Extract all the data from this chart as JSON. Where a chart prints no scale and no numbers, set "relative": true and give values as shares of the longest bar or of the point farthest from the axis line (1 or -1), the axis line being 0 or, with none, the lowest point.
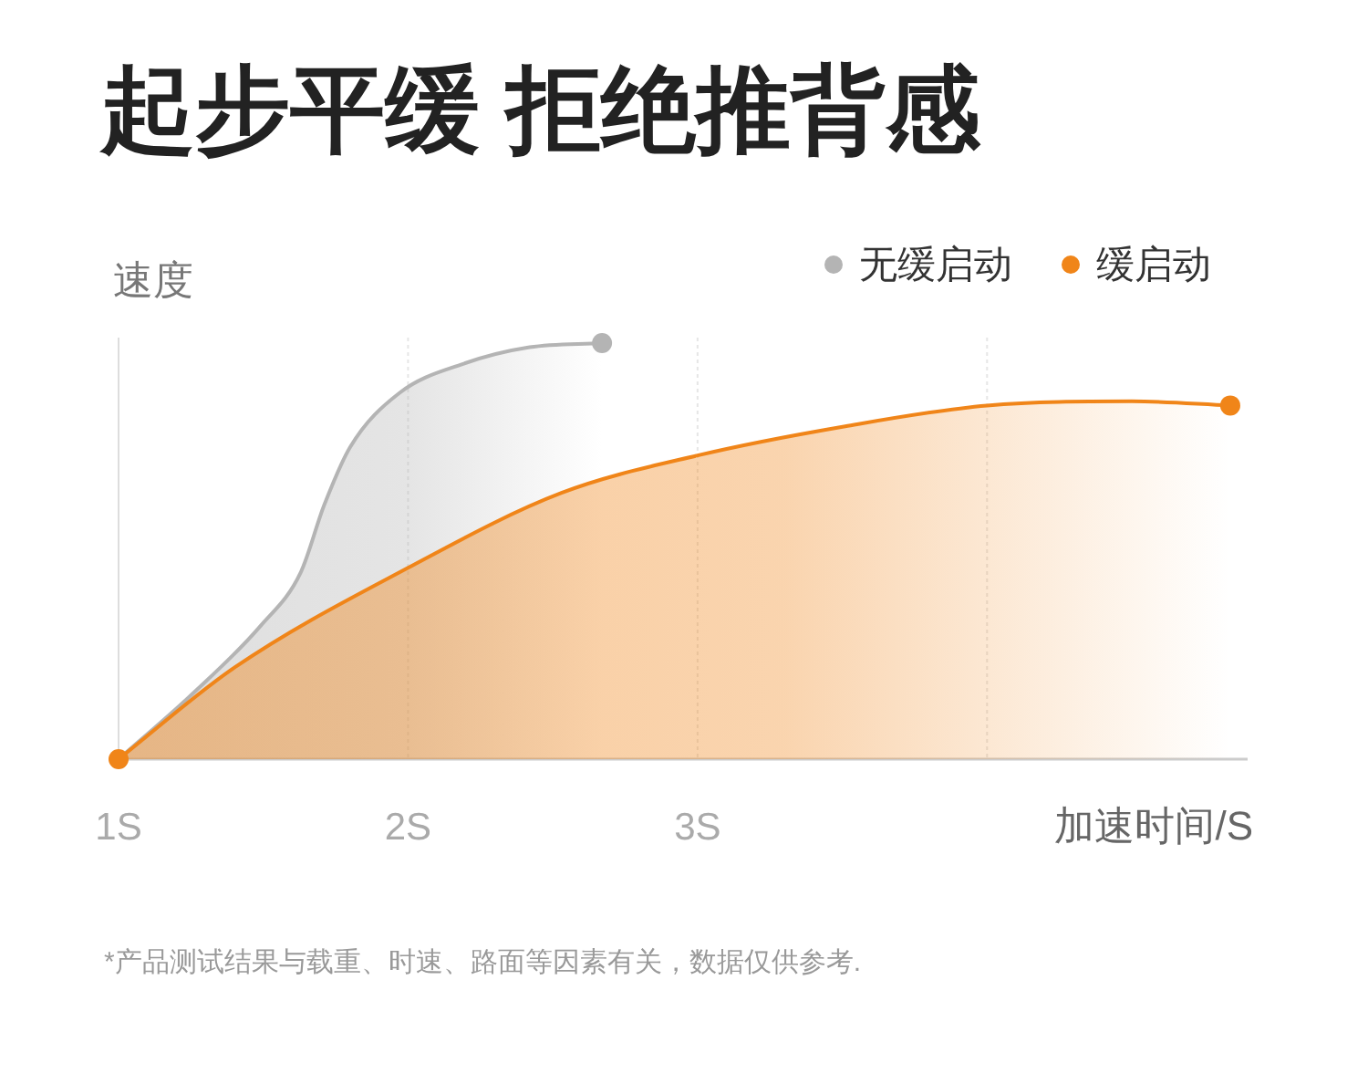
{
  "chart_data": {
    "type": "area",
    "title": "起步平缓 拒绝推背感",
    "ylabel": "速度",
    "xlabel": "加速时间/S",
    "relative": true,
    "xlim": [
      1,
      4.9
    ],
    "xticks": [
      {
        "value": 1,
        "label": "1S"
      },
      {
        "value": 2,
        "label": "2S"
      },
      {
        "value": 3,
        "label": "3S"
      },
      {
        "value": 4,
        "label": null
      }
    ],
    "grid": "x",
    "legend": "top right",
    "series": [
      {
        "name": "无缓启动",
        "color": "#b4b4b4",
        "x": [
          1,
          1.26,
          1.49,
          1.63,
          1.71,
          1.8,
          1.97,
          2.19,
          2.42,
          2.67
        ],
        "values": [
          0,
          0.16,
          0.32,
          0.45,
          0.61,
          0.75,
          0.88,
          0.95,
          0.99,
          1
        ]
      },
      {
        "name": "缓启动",
        "color": "#f08519",
        "x": [
          1,
          1.4,
          2,
          2.53,
          3,
          3.51,
          4,
          4.5,
          4.84
        ],
        "values": [
          0,
          0.22,
          0.46,
          0.64,
          0.73,
          0.8,
          0.85,
          0.86,
          0.85
        ]
      }
    ],
    "annotations": [
      "*产品测试结果与载重、时速、路面等因素有关，数据仅供参考."
    ]
  }
}
